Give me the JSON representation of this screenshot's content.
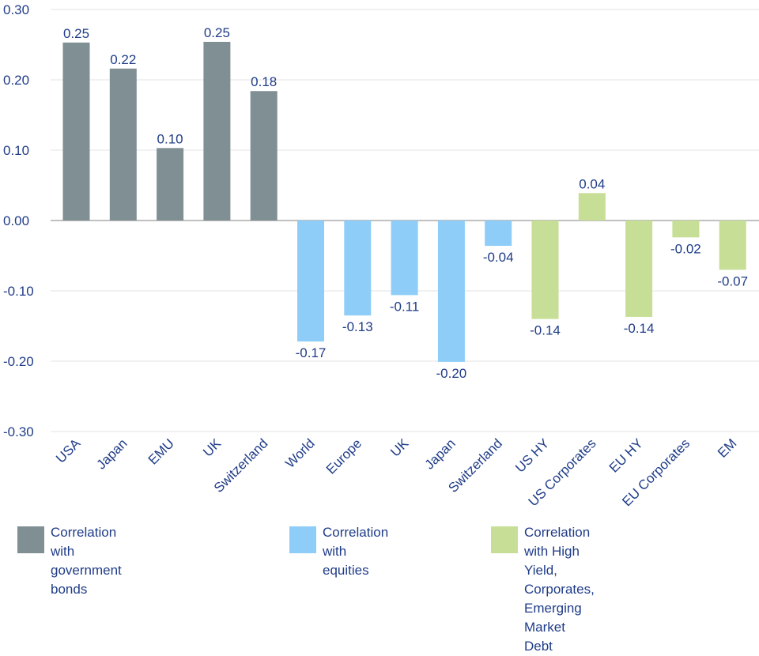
{
  "chart_data": {
    "type": "bar",
    "title": "",
    "xlabel": "",
    "ylabel": "",
    "ylim": [
      -0.3,
      0.3
    ],
    "yticks": [
      "0.30",
      "0.20",
      "0.10",
      "0.00",
      "-0.10",
      "-0.20",
      "-0.30"
    ],
    "ytick_values": [
      0.3,
      0.2,
      0.1,
      0.0,
      -0.1,
      -0.2,
      -0.3
    ],
    "categories": [
      "USA",
      "Japan",
      "EMU",
      "UK",
      "Switzerland",
      "World",
      "Europe",
      "UK",
      "Japan",
      "Switzerland",
      "US HY",
      "US Corporates",
      "EU HY",
      "EU Corporates",
      "EM"
    ],
    "values": [
      0.253,
      0.216,
      0.103,
      0.254,
      0.184,
      -0.172,
      -0.135,
      -0.106,
      -0.201,
      -0.036,
      -0.14,
      0.039,
      -0.137,
      -0.024,
      -0.07
    ],
    "labels": [
      "0.25",
      "0.22",
      "0.10",
      "0.25",
      "0.18",
      "-0.17",
      "-0.13",
      "-0.11",
      "-0.20",
      "-0.04",
      "-0.14",
      "0.04",
      "-0.14",
      "-0.02",
      "-0.07"
    ],
    "groups": [
      0,
      0,
      0,
      0,
      0,
      1,
      1,
      1,
      1,
      1,
      2,
      2,
      2,
      2,
      2
    ],
    "series": [
      {
        "name": "Correlation with government bonds",
        "color": "#7f8f93"
      },
      {
        "name": "Correlation with equities",
        "color": "#8ecdf8"
      },
      {
        "name": "Correlation with High Yield,\nCorporates, Emerging Market Debt",
        "color": "#c6de95"
      }
    ],
    "grid": true,
    "legend_position": "bottom"
  },
  "colors": {
    "text": "#1f3c88",
    "grid": "#e3e3e3",
    "axis": "#9a9a9a"
  }
}
